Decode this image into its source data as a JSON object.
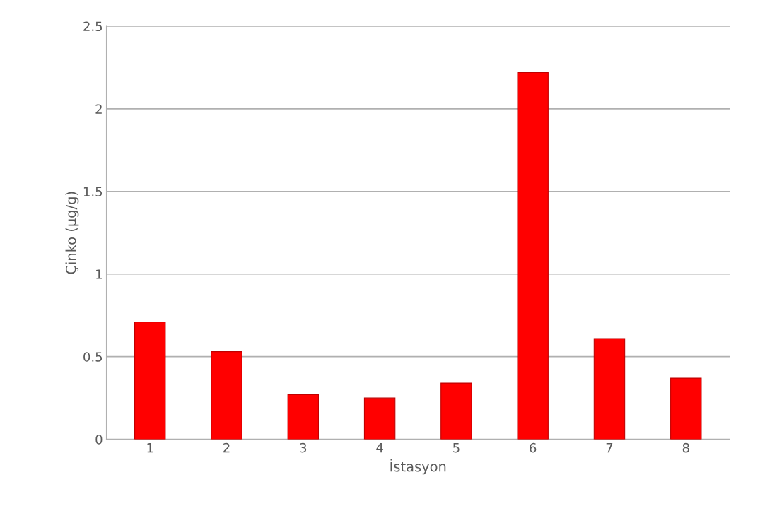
{
  "chart_data": {
    "type": "bar",
    "xlabel": "İstasyon",
    "ylabel": "Çinko (µg/g)",
    "categories": [
      "1",
      "2",
      "3",
      "4",
      "5",
      "6",
      "7",
      "8"
    ],
    "values": [
      0.71,
      0.53,
      0.27,
      0.25,
      0.34,
      2.22,
      0.61,
      0.37
    ],
    "color": "#ff0000",
    "ylim": [
      0,
      2.5
    ],
    "yticks": [
      {
        "value": 0,
        "label": "0"
      },
      0.5,
      {
        "value": 1,
        "label": "1"
      },
      1.5,
      {
        "value": 2,
        "label": "2"
      },
      2.5
    ],
    "grid": "y"
  }
}
